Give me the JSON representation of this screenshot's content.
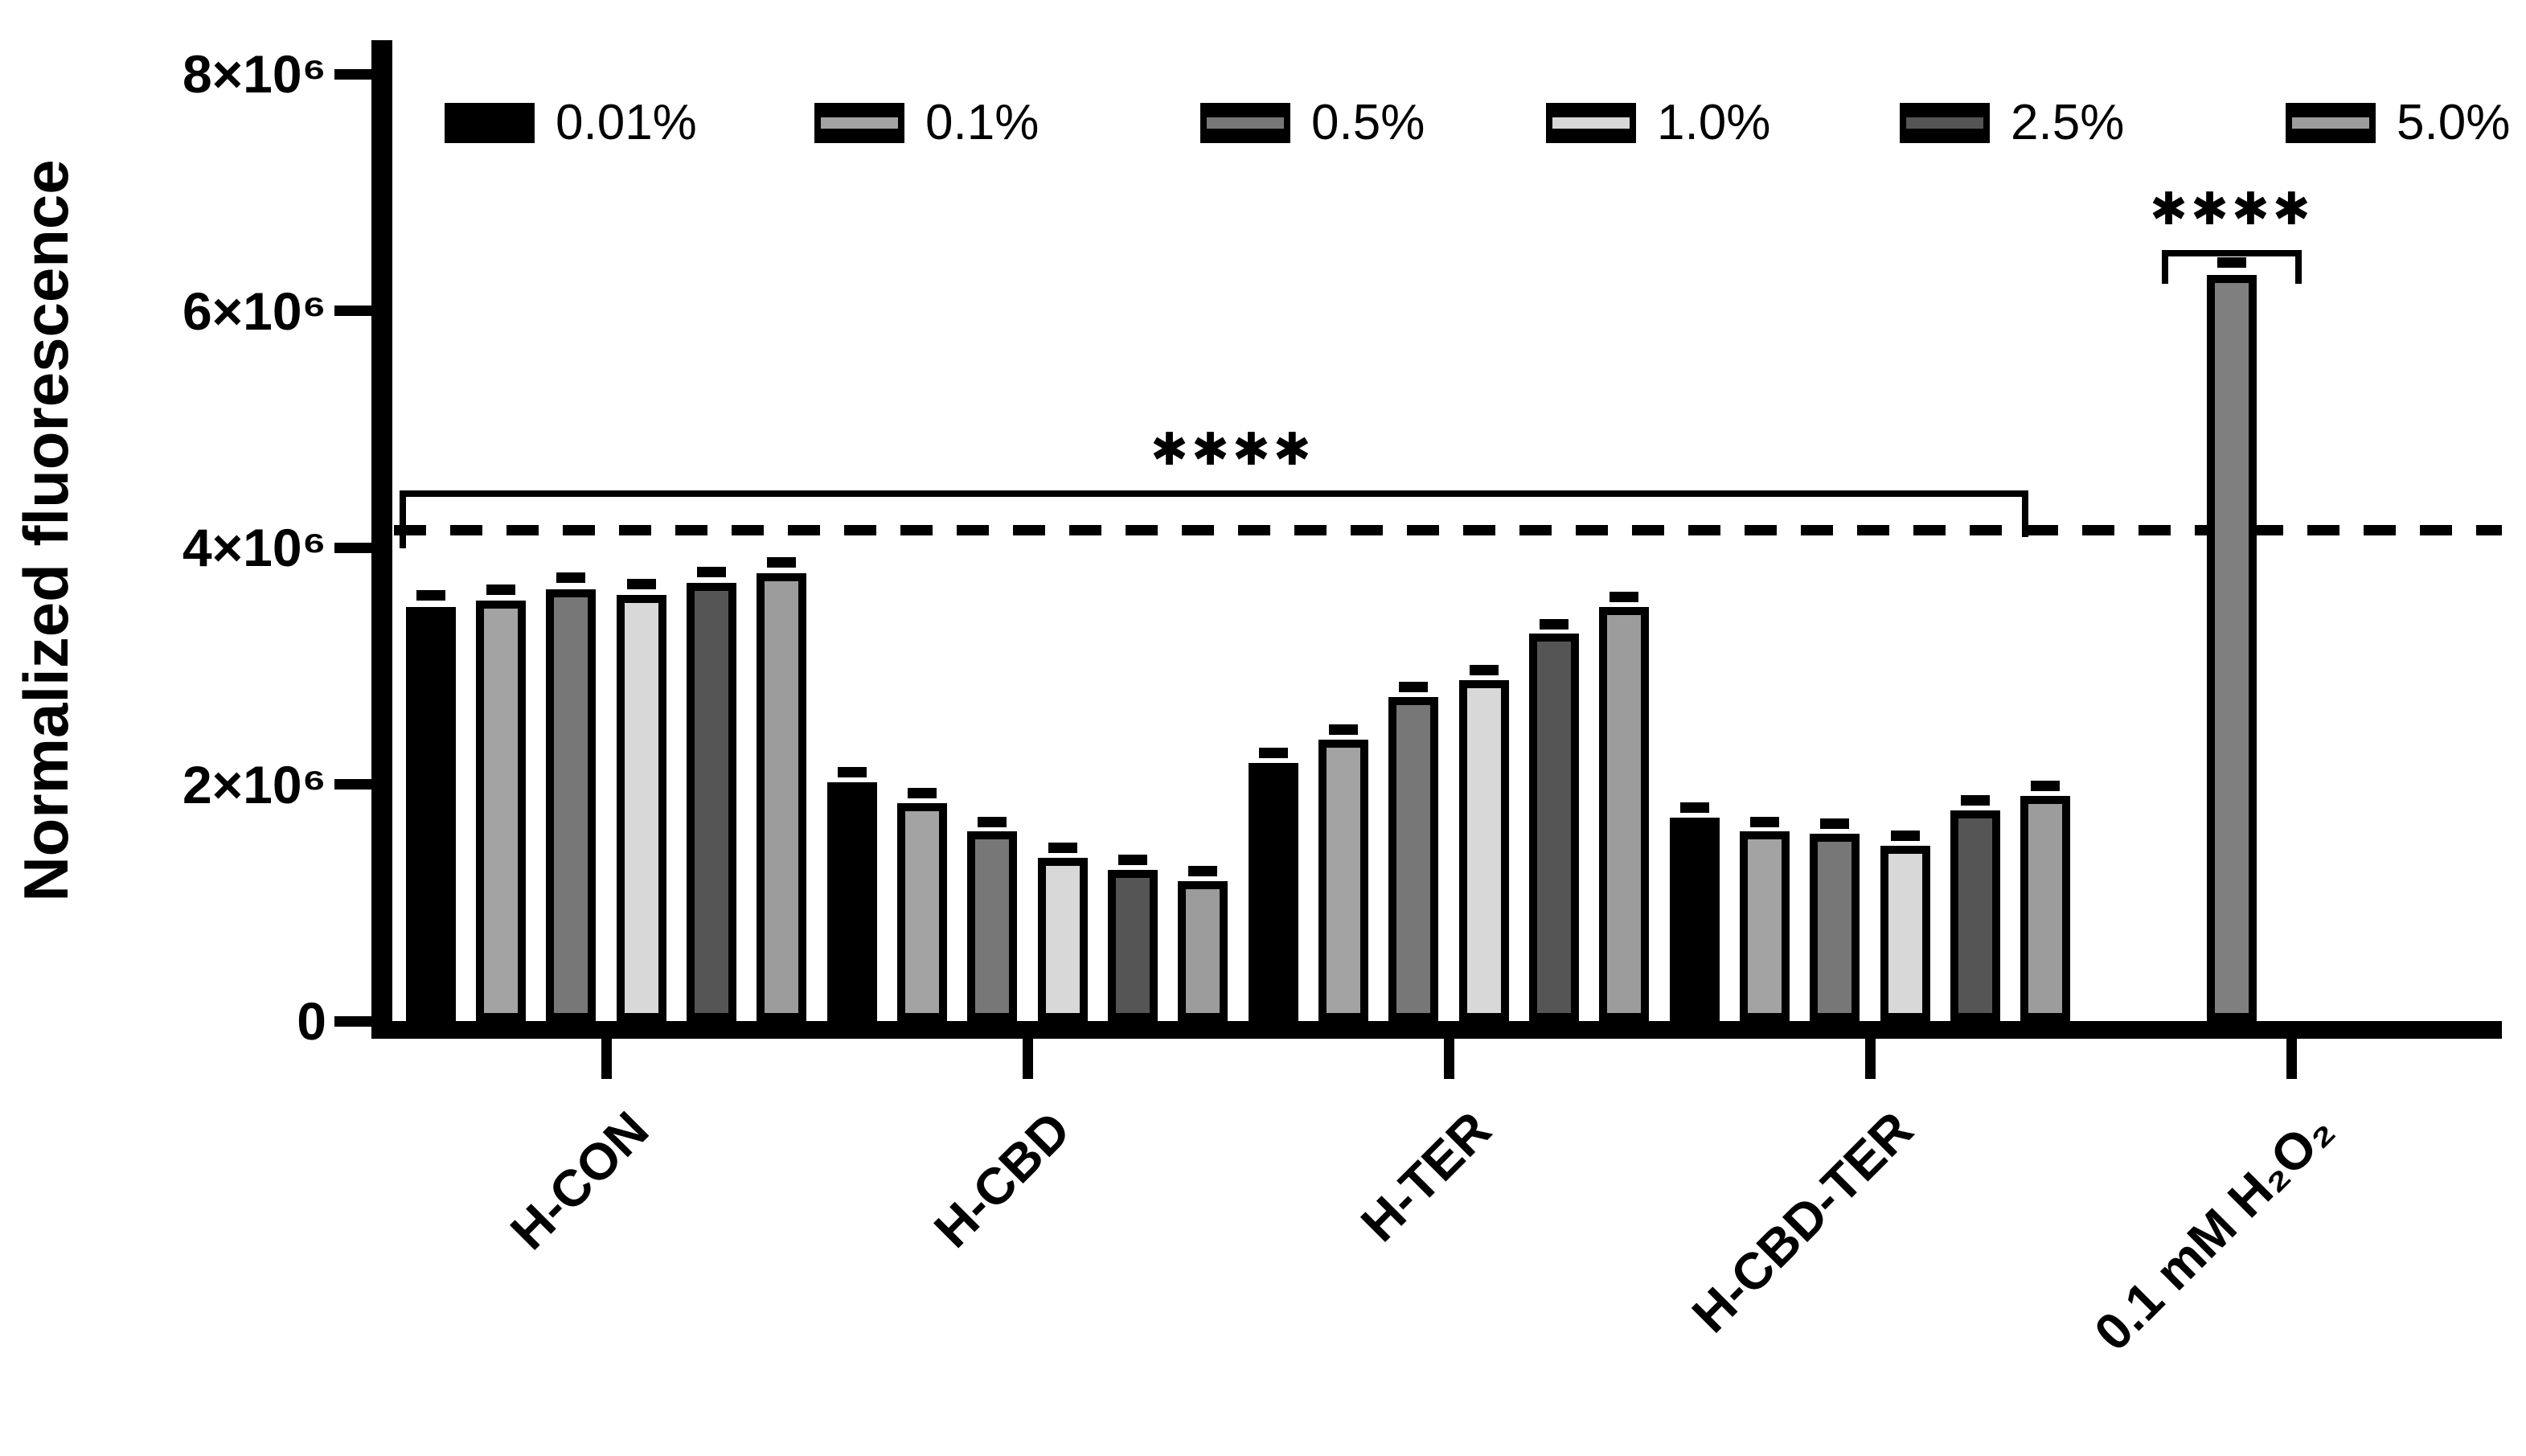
{
  "figure": {
    "background": "#ffffff"
  },
  "chart_data": {
    "type": "bar",
    "title": "",
    "ylabel": "Normalized fluorescence",
    "xlabel": "",
    "y_axis": {
      "min": 0,
      "max": 8000000,
      "tick_values": [
        0,
        2000000,
        4000000,
        6000000,
        8000000
      ],
      "tick_labels": [
        "0",
        "2×10⁶",
        "4×10⁶",
        "6×10⁶",
        "8×10⁶"
      ],
      "grid": false
    },
    "categories": [
      "H-CON",
      "H-CBD",
      "H-TER",
      "H-CBD-TER",
      "0.1 mM H₂O₂"
    ],
    "legend": {
      "position": "top",
      "labels": [
        "0.01%",
        "0.1%",
        "0.5%",
        "1.0%",
        "2.5%",
        "5.0%"
      ]
    },
    "bar_style": {
      "outline_color": "#000000",
      "outline_thick": true,
      "error_bars": "small caps above each bar"
    },
    "series": [
      {
        "name": "0.01%",
        "fill": "#000000",
        "values": [
          3500000,
          2020000,
          2180000,
          1720000,
          null
        ],
        "errors": [
          50000,
          40000,
          40000,
          40000,
          null
        ]
      },
      {
        "name": "0.1%",
        "fill": "#a3a3a3",
        "values": [
          3550000,
          1840000,
          2380000,
          1600000,
          null
        ],
        "errors": [
          50000,
          40000,
          40000,
          40000,
          null
        ]
      },
      {
        "name": "0.5%",
        "fill": "#777777",
        "values": [
          3650000,
          1600000,
          2740000,
          1580000,
          null
        ],
        "errors": [
          50000,
          40000,
          40000,
          40000,
          null
        ]
      },
      {
        "name": "1.0%",
        "fill": "#d8d8d8",
        "values": [
          3600000,
          1380000,
          2880000,
          1480000,
          null
        ],
        "errors": [
          50000,
          40000,
          40000,
          40000,
          null
        ]
      },
      {
        "name": "2.5%",
        "fill": "#555555",
        "values": [
          3700000,
          1280000,
          3270000,
          1780000,
          null
        ],
        "errors": [
          50000,
          40000,
          40000,
          40000,
          null
        ]
      },
      {
        "name": "5.0%",
        "fill": "#9c9c9c",
        "values": [
          3780000,
          1180000,
          3500000,
          1900000,
          null
        ],
        "errors": [
          50000,
          40000,
          40000,
          40000,
          null
        ]
      }
    ],
    "single_bar": {
      "category": "0.1 mM H₂O₂",
      "value": 6300000,
      "error": 60000,
      "fill": "#7f7f7f"
    },
    "reference_line": {
      "value": 4150000,
      "style": "dashed",
      "color": "#000000"
    },
    "significance": [
      {
        "label": "****",
        "span": "bracket over H-CON through H-CBD-TER groups"
      },
      {
        "label": "****",
        "span": "bracket over 0.1 mM H₂O₂ bar"
      }
    ]
  }
}
